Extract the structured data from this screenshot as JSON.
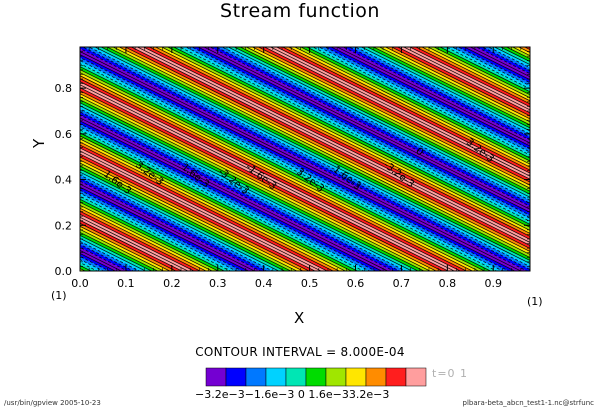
{
  "chart_data": {
    "type": "contour",
    "title": "Stream function",
    "xlabel": "X",
    "ylabel": "Y",
    "xlim": [
      0.0,
      0.98
    ],
    "ylim": [
      0.0,
      0.98
    ],
    "xticks": [
      "0.0",
      "0.1",
      "0.2",
      "0.3",
      "0.4",
      "0.5",
      "0.6",
      "0.7",
      "0.8",
      "0.9"
    ],
    "yticks": [
      "0.0",
      "0.2",
      "0.4",
      "0.6",
      "0.8"
    ],
    "axis_unit_left": "(1)",
    "axis_unit_right": "(1)",
    "contour_interval": "CONTOUR INTERVAL = 8.000E-04",
    "time_label": "t=0 1",
    "stripe_period": 0.29,
    "levels_sequence": [
      "#7400d2",
      "#0000ff",
      "#0078ff",
      "#00d2ff",
      "#00e6b4",
      "#00dc00",
      "#a0e600",
      "#ffe600",
      "#ff8c00",
      "#ff1e1e",
      "#ff9e9e",
      "#ff9e9e",
      "#ff1e1e",
      "#ff8c00",
      "#ffe600",
      "#a0e600",
      "#00dc00",
      "#00e6b4",
      "#00d2ff",
      "#0078ff",
      "#0000ff",
      "#7400d2"
    ],
    "contour_labels": [
      "1.6e-3",
      "3.2e-3",
      "1.6e-3",
      "-3.2e-3",
      "-1.6e-3",
      "3.2e-3",
      "1.6e-3",
      "-3.2e-3",
      "0",
      "3.2e-3"
    ],
    "colorbar": {
      "colors": [
        "#7400d2",
        "#0000ff",
        "#0078ff",
        "#00d2ff",
        "#00e6b4",
        "#00dc00",
        "#a0e600",
        "#ffe600",
        "#ff8c00",
        "#ff1e1e",
        "#ff9e9e"
      ],
      "labels_text": "−3.2e−3−1.6e−3  0   1.6e−33.2e−3"
    }
  },
  "footer": {
    "left": "/usr/bin/gpview  2005-10-23",
    "right": "plbara-beta_abcn_test1-1.nc@strfunc"
  }
}
